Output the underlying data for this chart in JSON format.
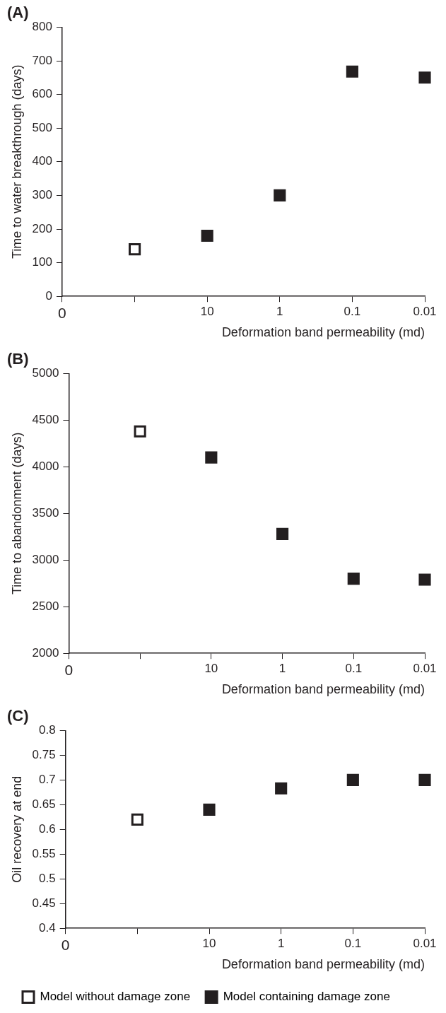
{
  "chart_data": [
    {
      "type": "scatter",
      "title": "(A)",
      "xlabel": "Deformation band permeability (md)",
      "ylabel": "Time to water breakthrough (days)",
      "categories": [
        "0",
        null,
        "10",
        "1",
        "0.1",
        "0.01"
      ],
      "ylim": [
        0,
        800
      ],
      "yticks": [
        0,
        100,
        200,
        300,
        400,
        500,
        600,
        700,
        800
      ],
      "marker": "square",
      "grid": false,
      "legend": false,
      "series": [
        {
          "color": "#ffffff",
          "values": [
            null,
            140,
            null,
            null,
            null,
            null
          ]
        },
        {
          "color": "#231f20",
          "values": [
            null,
            null,
            180,
            300,
            668,
            650
          ]
        }
      ]
    },
    {
      "type": "scatter",
      "title": "(B)",
      "xlabel": "Deformation band permeability (md)",
      "ylabel": "Time to abandonment (days)",
      "categories": [
        "0",
        null,
        "10",
        "1",
        "0.1",
        "0.01"
      ],
      "ylim": [
        2000,
        5000
      ],
      "yticks": [
        2000,
        2500,
        3000,
        3500,
        4000,
        4500,
        5000
      ],
      "marker": "square",
      "grid": false,
      "legend": false,
      "series": [
        {
          "color": "#ffffff",
          "values": [
            null,
            4380,
            null,
            null,
            null,
            null
          ]
        },
        {
          "color": "#231f20",
          "values": [
            null,
            null,
            4100,
            3280,
            2800,
            2790
          ]
        }
      ]
    },
    {
      "type": "scatter",
      "title": "(C)",
      "xlabel": "Deformation band permeability (md)",
      "ylabel": "Oil recovery at end",
      "categories": [
        "0",
        null,
        "10",
        "1",
        "0.1",
        "0.01"
      ],
      "ylim": [
        0.4,
        0.8
      ],
      "yticks": [
        0.4,
        0.45,
        0.5,
        0.55,
        0.6,
        0.65,
        0.7,
        0.75,
        0.8
      ],
      "marker": "square",
      "grid": false,
      "legend": "bottom",
      "series": [
        {
          "name": "Model without damage zone",
          "color": "#ffffff",
          "values": [
            null,
            0.62,
            null,
            null,
            null,
            null
          ]
        },
        {
          "name": "Model containing damage zone",
          "color": "#231f20",
          "values": [
            null,
            null,
            0.64,
            0.683,
            0.7,
            0.7
          ]
        }
      ]
    }
  ]
}
